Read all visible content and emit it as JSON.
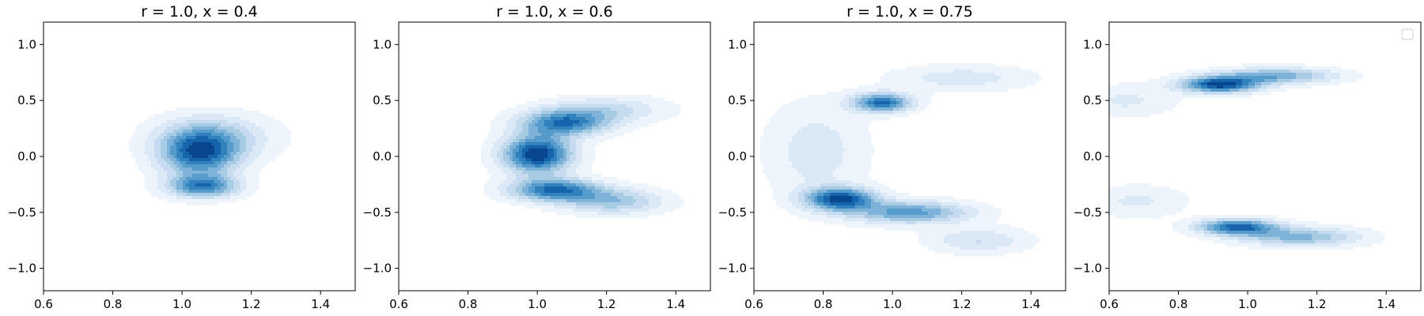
{
  "chart_data": [
    {
      "type": "contour",
      "title": "r = 1.0, x = 0.4",
      "xlim": [
        0.6,
        1.5
      ],
      "ylim": [
        -1.2,
        1.2
      ],
      "xticks": [
        "0.6",
        "0.8",
        "1.0",
        "1.2",
        "1.4"
      ],
      "yticks": [
        "1.0",
        "0.5",
        "0.0",
        "−0.5",
        "−1.0"
      ],
      "colormap": "Blues",
      "levels": 9,
      "density_modes": [
        {
          "x": 1.05,
          "y": 0.03,
          "sx": 0.08,
          "sy": 0.15,
          "weight": 1.0
        },
        {
          "x": 1.06,
          "y": -0.27,
          "sx": 0.07,
          "sy": 0.07,
          "weight": 0.85
        },
        {
          "x": 1.1,
          "y": 0.18,
          "sx": 0.12,
          "sy": 0.14,
          "weight": 0.35
        }
      ],
      "legend": false
    },
    {
      "type": "contour",
      "title": "r = 1.0, x = 0.6",
      "xlim": [
        0.6,
        1.5
      ],
      "ylim": [
        -1.2,
        1.2
      ],
      "xticks": [
        "0.6",
        "0.8",
        "1.0",
        "1.2",
        "1.4"
      ],
      "yticks": [
        "1.0",
        "0.5",
        "0.0",
        "−0.5",
        "−1.0"
      ],
      "colormap": "Blues",
      "levels": 9,
      "density_modes": [
        {
          "x": 1.0,
          "y": 0.02,
          "sx": 0.07,
          "sy": 0.12,
          "weight": 1.0
        },
        {
          "x": 1.08,
          "y": 0.3,
          "sx": 0.09,
          "sy": 0.08,
          "weight": 0.75
        },
        {
          "x": 1.05,
          "y": -0.3,
          "sx": 0.09,
          "sy": 0.07,
          "weight": 0.8
        },
        {
          "x": 1.22,
          "y": -0.4,
          "sx": 0.1,
          "sy": 0.08,
          "weight": 0.45
        },
        {
          "x": 1.2,
          "y": 0.42,
          "sx": 0.12,
          "sy": 0.08,
          "weight": 0.3
        }
      ],
      "legend": false
    },
    {
      "type": "contour",
      "title": "r = 1.0, x = 0.75",
      "xlim": [
        0.6,
        1.5
      ],
      "ylim": [
        -1.2,
        1.2
      ],
      "xticks": [
        "0.6",
        "0.8",
        "1.0",
        "1.2",
        "1.4"
      ],
      "yticks": [
        "1.0",
        "0.5",
        "0.0",
        "−0.5",
        "−1.0"
      ],
      "colormap": "Blues",
      "levels": 9,
      "density_modes": [
        {
          "x": 0.97,
          "y": 0.48,
          "sx": 0.06,
          "sy": 0.06,
          "weight": 0.9
        },
        {
          "x": 0.85,
          "y": -0.38,
          "sx": 0.07,
          "sy": 0.07,
          "weight": 1.0
        },
        {
          "x": 1.05,
          "y": -0.5,
          "sx": 0.12,
          "sy": 0.07,
          "weight": 0.7
        },
        {
          "x": 0.78,
          "y": 0.05,
          "sx": 0.1,
          "sy": 0.3,
          "weight": 0.25
        },
        {
          "x": 1.2,
          "y": 0.7,
          "sx": 0.14,
          "sy": 0.08,
          "weight": 0.25
        },
        {
          "x": 1.25,
          "y": -0.75,
          "sx": 0.1,
          "sy": 0.08,
          "weight": 0.3
        }
      ],
      "legend": false
    },
    {
      "type": "contour",
      "title": "",
      "xlim": [
        0.6,
        1.5
      ],
      "ylim": [
        -1.2,
        1.2
      ],
      "xticks": [
        "0.6",
        "0.8",
        "1.0",
        "1.2",
        "1.4"
      ],
      "yticks": [
        "1.0",
        "0.5",
        "0.0",
        "−0.5",
        "−1.0"
      ],
      "colormap": "Blues",
      "levels": 9,
      "density_modes": [
        {
          "x": 0.92,
          "y": 0.64,
          "sx": 0.08,
          "sy": 0.05,
          "weight": 1.0
        },
        {
          "x": 1.08,
          "y": 0.72,
          "sx": 0.12,
          "sy": 0.05,
          "weight": 0.6
        },
        {
          "x": 0.97,
          "y": -0.63,
          "sx": 0.08,
          "sy": 0.05,
          "weight": 0.9
        },
        {
          "x": 1.15,
          "y": -0.72,
          "sx": 0.12,
          "sy": 0.06,
          "weight": 0.55
        },
        {
          "x": 0.65,
          "y": 0.5,
          "sx": 0.1,
          "sy": 0.1,
          "weight": 0.2
        },
        {
          "x": 0.68,
          "y": -0.4,
          "sx": 0.1,
          "sy": 0.1,
          "weight": 0.2
        }
      ],
      "legend": true,
      "legend_position": "top-right"
    }
  ]
}
